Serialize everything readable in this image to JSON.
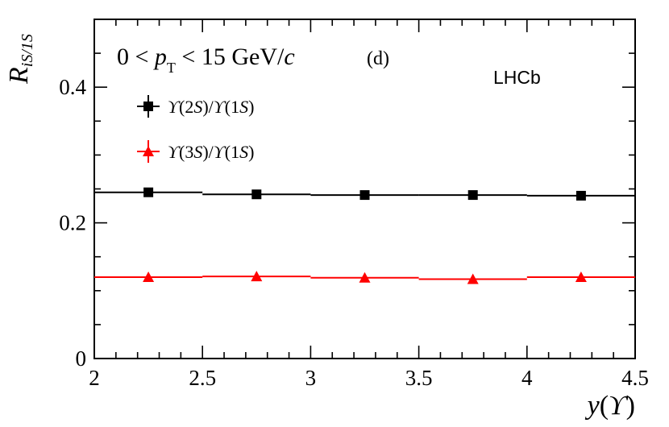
{
  "chart_data": {
    "type": "scatter",
    "panel_label": "(d)",
    "experiment_label": "LHCb",
    "kinematic_label": {
      "prefix": "0 < ",
      "var": "p",
      "var_sub": "T",
      "suffix": " < 15 GeV/",
      "unit_italic": "c"
    },
    "ylabel": {
      "main": "R",
      "sub": "iS/1S"
    },
    "xlabel": {
      "var": "y",
      "open": "(",
      "particle": "ϒ",
      "close": ")"
    },
    "xlim": [
      2,
      4.5
    ],
    "ylim": [
      0,
      0.5
    ],
    "xticks": [
      {
        "value": 2,
        "label": "2"
      },
      {
        "value": 2.5,
        "label": "2.5"
      },
      {
        "value": 3,
        "label": "3"
      },
      {
        "value": 3.5,
        "label": "3.5"
      },
      {
        "value": 4,
        "label": "4"
      },
      {
        "value": 4.5,
        "label": "4.5"
      }
    ],
    "yticks": [
      {
        "value": 0,
        "label": "0"
      },
      {
        "value": 0.2,
        "label": "0.2"
      },
      {
        "value": 0.4,
        "label": "0.4"
      }
    ],
    "bins": [
      [
        2.0,
        2.5
      ],
      [
        2.5,
        3.0
      ],
      [
        3.0,
        3.5
      ],
      [
        3.5,
        4.0
      ],
      [
        4.0,
        4.5
      ]
    ],
    "series": [
      {
        "name": "ϒ(2S)/ϒ(1S)",
        "legend": {
          "sym": "ϒ",
          "n1": "(2",
          "s1": "S",
          "mid": ")/",
          "sym2": "ϒ",
          "n2": "(1",
          "s2": "S",
          "end": ")"
        },
        "color": "#000000",
        "marker": "square",
        "x": [
          2.25,
          2.75,
          3.25,
          3.75,
          4.25
        ],
        "values": [
          0.245,
          0.242,
          0.241,
          0.241,
          0.24
        ]
      },
      {
        "name": "ϒ(3S)/ϒ(1S)",
        "legend": {
          "sym": "ϒ",
          "n1": "(3",
          "s1": "S",
          "mid": ")/",
          "sym2": "ϒ",
          "n2": "(1",
          "s2": "S",
          "end": ")"
        },
        "color": "#ff0000",
        "marker": "triangle",
        "x": [
          2.25,
          2.75,
          3.25,
          3.75,
          4.25
        ],
        "values": [
          0.12,
          0.121,
          0.119,
          0.117,
          0.12
        ]
      }
    ]
  }
}
